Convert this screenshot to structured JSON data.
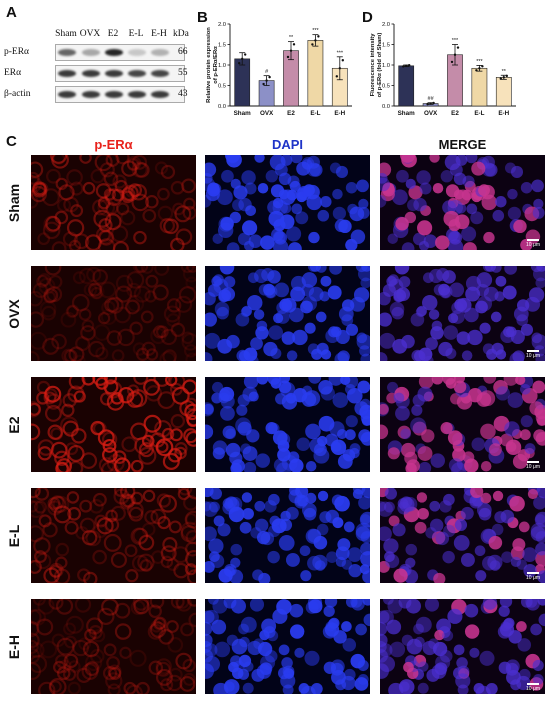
{
  "panels": {
    "a": {
      "letter": "A"
    },
    "b": {
      "letter": "B"
    },
    "c": {
      "letter": "C"
    },
    "d": {
      "letter": "D"
    }
  },
  "western_blot": {
    "lanes": [
      "Sham",
      "OVX",
      "E2",
      "E-L",
      "E-H"
    ],
    "kda_label": "kDa",
    "rows": [
      {
        "name": "p-ERα",
        "kda": "66",
        "intensity": [
          0.65,
          0.35,
          0.95,
          0.2,
          0.3
        ]
      },
      {
        "name": "ERα",
        "kda": "55",
        "intensity": [
          0.85,
          0.85,
          0.85,
          0.8,
          0.8
        ]
      },
      {
        "name": "β-actin",
        "kda": "43",
        "intensity": [
          0.85,
          0.85,
          0.85,
          0.85,
          0.85
        ]
      }
    ]
  },
  "chart_data": [
    {
      "type": "bar",
      "panel": "B",
      "categories": [
        "Sham",
        "OVX",
        "E2",
        "E-L",
        "E-H"
      ],
      "values": [
        1.15,
        0.62,
        1.35,
        1.6,
        0.92
      ],
      "errors": [
        0.15,
        0.12,
        0.22,
        0.14,
        0.28
      ],
      "significance": [
        "",
        "#",
        "**",
        "***",
        "***"
      ],
      "colors": [
        "#2d3257",
        "#8c90c7",
        "#c48ca9",
        "#efd8a6",
        "#f7e2bb"
      ],
      "ylabel": "Relative protein expression of p-ERα/ERα",
      "ylim": [
        0,
        2.0
      ],
      "yticks": [
        "0.0",
        "0.5",
        "1.0",
        "1.5",
        "2.0"
      ]
    },
    {
      "type": "bar",
      "panel": "D",
      "categories": [
        "Sham",
        "OVX",
        "E2",
        "E-L",
        "E-H"
      ],
      "values": [
        0.98,
        0.06,
        1.25,
        0.92,
        0.7
      ],
      "errors": [
        0.02,
        0.02,
        0.25,
        0.07,
        0.05
      ],
      "significance": [
        "",
        "##",
        "***",
        "***",
        "**"
      ],
      "colors": [
        "#2d3257",
        "#8c90c7",
        "#c48ca9",
        "#efd8a6",
        "#f7e2bb"
      ],
      "ylabel": "Fluorescence intensity of p-ERα (fold of Sham)",
      "ylim": [
        0,
        2.0
      ],
      "yticks": [
        "0.0",
        "0.5",
        "1.0",
        "1.5",
        "2.0"
      ]
    }
  ],
  "micrographs": {
    "columns": [
      {
        "label": "p-ERα",
        "color": "#e8221b"
      },
      {
        "label": "DAPI",
        "color": "#1f34c8"
      },
      {
        "label": "MERGE",
        "color": "#111111"
      }
    ],
    "rows": [
      {
        "label": "Sham",
        "red": 0.55,
        "scale": "10 μm"
      },
      {
        "label": "OVX",
        "red": 0.3,
        "scale": "10 μm"
      },
      {
        "label": "E2",
        "red": 0.95,
        "scale": "10 μm"
      },
      {
        "label": "E-L",
        "red": 0.55,
        "scale": "10 μm"
      },
      {
        "label": "E-H",
        "red": 0.4,
        "scale": "10 μm"
      }
    ]
  }
}
